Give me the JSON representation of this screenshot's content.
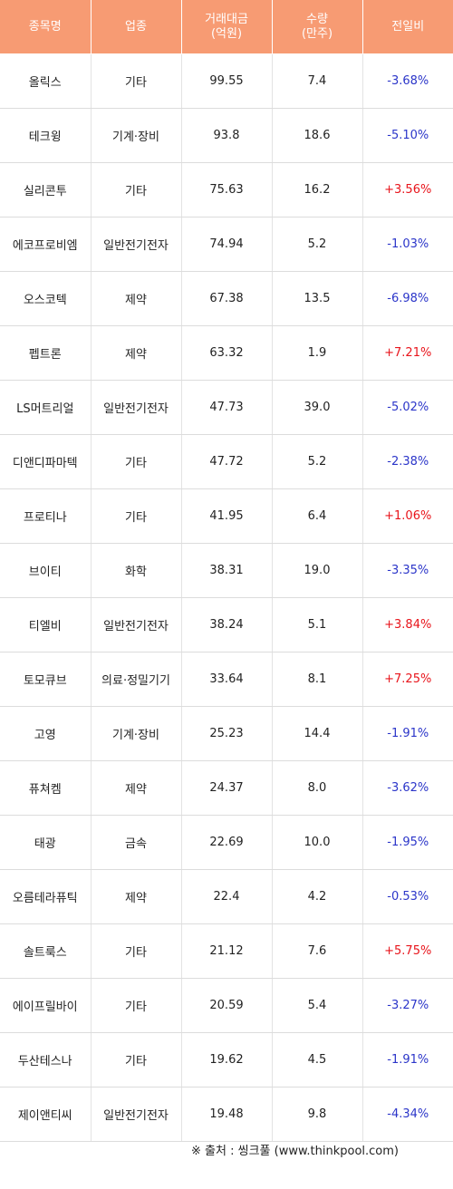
{
  "table": {
    "headers": [
      "종목명",
      "업종",
      "거래대금\n(억원)",
      "수량\n(만주)",
      "전일비"
    ],
    "rows": [
      {
        "name": "올릭스",
        "sector": "기타",
        "amount": "99.55",
        "qty": "7.4",
        "change": "-3.68%",
        "dir": "down"
      },
      {
        "name": "테크윙",
        "sector": "기계·장비",
        "amount": "93.8",
        "qty": "18.6",
        "change": "-5.10%",
        "dir": "down"
      },
      {
        "name": "실리콘투",
        "sector": "기타",
        "amount": "75.63",
        "qty": "16.2",
        "change": "+3.56%",
        "dir": "up"
      },
      {
        "name": "에코프로비엠",
        "sector": "일반전기전자",
        "amount": "74.94",
        "qty": "5.2",
        "change": "-1.03%",
        "dir": "down"
      },
      {
        "name": "오스코텍",
        "sector": "제약",
        "amount": "67.38",
        "qty": "13.5",
        "change": "-6.98%",
        "dir": "down"
      },
      {
        "name": "펩트론",
        "sector": "제약",
        "amount": "63.32",
        "qty": "1.9",
        "change": "+7.21%",
        "dir": "up"
      },
      {
        "name": "LS머트리얼",
        "sector": "일반전기전자",
        "amount": "47.73",
        "qty": "39.0",
        "change": "-5.02%",
        "dir": "down"
      },
      {
        "name": "디앤디파마텍",
        "sector": "기타",
        "amount": "47.72",
        "qty": "5.2",
        "change": "-2.38%",
        "dir": "down"
      },
      {
        "name": "프로티나",
        "sector": "기타",
        "amount": "41.95",
        "qty": "6.4",
        "change": "+1.06%",
        "dir": "up"
      },
      {
        "name": "브이티",
        "sector": "화학",
        "amount": "38.31",
        "qty": "19.0",
        "change": "-3.35%",
        "dir": "down"
      },
      {
        "name": "티엘비",
        "sector": "일반전기전자",
        "amount": "38.24",
        "qty": "5.1",
        "change": "+3.84%",
        "dir": "up"
      },
      {
        "name": "토모큐브",
        "sector": "의료·정밀기기",
        "amount": "33.64",
        "qty": "8.1",
        "change": "+7.25%",
        "dir": "up"
      },
      {
        "name": "고영",
        "sector": "기계·장비",
        "amount": "25.23",
        "qty": "14.4",
        "change": "-1.91%",
        "dir": "down"
      },
      {
        "name": "퓨쳐켐",
        "sector": "제약",
        "amount": "24.37",
        "qty": "8.0",
        "change": "-3.62%",
        "dir": "down"
      },
      {
        "name": "태광",
        "sector": "금속",
        "amount": "22.69",
        "qty": "10.0",
        "change": "-1.95%",
        "dir": "down"
      },
      {
        "name": "오름테라퓨틱",
        "sector": "제약",
        "amount": "22.4",
        "qty": "4.2",
        "change": "-0.53%",
        "dir": "down"
      },
      {
        "name": "솔트룩스",
        "sector": "기타",
        "amount": "21.12",
        "qty": "7.6",
        "change": "+5.75%",
        "dir": "up"
      },
      {
        "name": "에이프릴바이",
        "sector": "기타",
        "amount": "20.59",
        "qty": "5.4",
        "change": "-3.27%",
        "dir": "down"
      },
      {
        "name": "두산테스나",
        "sector": "기타",
        "amount": "19.62",
        "qty": "4.5",
        "change": "-1.91%",
        "dir": "down"
      },
      {
        "name": "제이앤티씨",
        "sector": "일반전기전자",
        "amount": "19.48",
        "qty": "9.8",
        "change": "-4.34%",
        "dir": "down"
      }
    ]
  },
  "source": "※ 출처 : 씽크풀 (www.thinkpool.com)",
  "colors": {
    "header_bg": "#f79b73",
    "up": "#e8141b",
    "down": "#2b35c9"
  }
}
